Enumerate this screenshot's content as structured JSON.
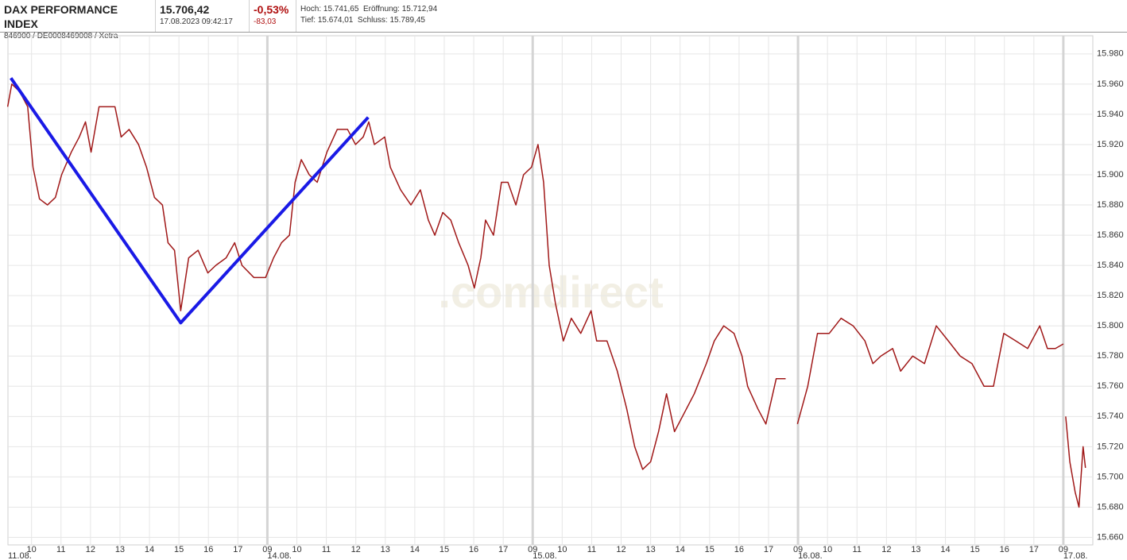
{
  "header": {
    "name": "DAX PERFORMANCE INDEX",
    "identifiers": "846900 / DE0008469008 / Xetra",
    "last_price": "15.706,42",
    "timestamp": "17.08.2023 09:42:17",
    "change_percent": "-0,53%",
    "change_abs": "-83,03",
    "high": "Hoch: 15.741,65",
    "open": "Eröffnung: 15.712,94",
    "low": "Tief: 15.674,01",
    "close": "Schluss: 15.789,45"
  },
  "chart_data": {
    "type": "line",
    "watermark": ".comdirect",
    "xlim": [
      0.2,
      37
    ],
    "ylim": [
      15655,
      15992
    ],
    "grid": true,
    "yticks": [
      {
        "value": 15660,
        "label": "15.660"
      },
      {
        "value": 15680,
        "label": "15.680"
      },
      {
        "value": 15700,
        "label": "15.700"
      },
      {
        "value": 15720,
        "label": "15.720"
      },
      {
        "value": 15740,
        "label": "15.740"
      },
      {
        "value": 15760,
        "label": "15.760"
      },
      {
        "value": 15780,
        "label": "15.780"
      },
      {
        "value": 15800,
        "label": "15.800"
      },
      {
        "value": 15820,
        "label": "15.820"
      },
      {
        "value": 15840,
        "label": "15.840"
      },
      {
        "value": 15860,
        "label": "15.860"
      },
      {
        "value": 15880,
        "label": "15.880"
      },
      {
        "value": 15900,
        "label": "15.900"
      },
      {
        "value": 15920,
        "label": "15.920"
      },
      {
        "value": 15940,
        "label": "15.940"
      },
      {
        "value": 15960,
        "label": "15.960"
      },
      {
        "value": 15980,
        "label": "15.980"
      }
    ],
    "xticks": [
      {
        "value": 1,
        "label": "10"
      },
      {
        "value": 2,
        "label": "11"
      },
      {
        "value": 3,
        "label": "12"
      },
      {
        "value": 4,
        "label": "13"
      },
      {
        "value": 5,
        "label": "14"
      },
      {
        "value": 6,
        "label": "15"
      },
      {
        "value": 7,
        "label": "16"
      },
      {
        "value": 8,
        "label": "17"
      },
      {
        "value": 9,
        "label": "09"
      },
      {
        "value": 10,
        "label": "10"
      },
      {
        "value": 11,
        "label": "11"
      },
      {
        "value": 12,
        "label": "12"
      },
      {
        "value": 13,
        "label": "13"
      },
      {
        "value": 14,
        "label": "14"
      },
      {
        "value": 15,
        "label": "15"
      },
      {
        "value": 16,
        "label": "16"
      },
      {
        "value": 17,
        "label": "17"
      },
      {
        "value": 18,
        "label": "09"
      },
      {
        "value": 19,
        "label": "10"
      },
      {
        "value": 20,
        "label": "11"
      },
      {
        "value": 21,
        "label": "12"
      },
      {
        "value": 22,
        "label": "13"
      },
      {
        "value": 23,
        "label": "14"
      },
      {
        "value": 24,
        "label": "15"
      },
      {
        "value": 25,
        "label": "16"
      },
      {
        "value": 26,
        "label": "17"
      },
      {
        "value": 27,
        "label": "09"
      },
      {
        "value": 28,
        "label": "10"
      },
      {
        "value": 29,
        "label": "11"
      },
      {
        "value": 30,
        "label": "12"
      },
      {
        "value": 31,
        "label": "13"
      },
      {
        "value": 32,
        "label": "14"
      },
      {
        "value": 33,
        "label": "15"
      },
      {
        "value": 34,
        "label": "16"
      },
      {
        "value": 35,
        "label": "17"
      },
      {
        "value": 36,
        "label": "09"
      }
    ],
    "date_ticks": [
      {
        "value": 0.2,
        "label": "11.08."
      },
      {
        "value": 9,
        "label": "14.08."
      },
      {
        "value": 18,
        "label": "15.08."
      },
      {
        "value": 27,
        "label": "16.08."
      },
      {
        "value": 36,
        "label": "17.08."
      }
    ],
    "series": [
      {
        "name": "DAX",
        "color": "#a01818",
        "x": [
          0.19,
          0.33,
          0.6,
          0.87,
          1.05,
          1.27,
          1.54,
          1.81,
          2.02,
          2.35,
          2.62,
          2.83,
          3.02,
          3.29,
          3.56,
          3.83,
          4.04,
          4.31,
          4.63,
          4.9,
          5.17,
          5.44,
          5.63,
          5.85,
          6.06,
          6.33,
          6.65,
          6.98,
          7.25,
          7.6,
          7.89,
          8.14,
          8.54,
          8.94,
          9.21,
          9.48,
          9.75,
          9.94,
          10.15,
          10.42,
          10.69,
          11.02,
          11.37,
          11.72,
          11.99,
          12.25,
          12.44,
          12.63,
          12.98,
          13.17,
          13.52,
          13.87,
          14.19,
          14.46,
          14.68,
          14.95,
          15.22,
          15.49,
          15.81,
          16.02,
          16.24,
          16.4,
          16.67,
          16.94,
          17.16,
          17.43,
          17.69,
          17.96,
          18.18,
          18.37,
          18.56,
          18.77,
          19.04,
          19.31,
          19.63,
          19.98,
          20.17,
          20.52,
          20.87,
          21.19,
          21.46,
          21.73,
          22,
          22.27,
          22.54,
          22.81,
          23.08,
          23.48,
          23.89,
          24.16,
          24.48,
          24.83,
          25.1,
          25.29,
          25.64,
          25.91,
          26.26,
          26.58,
          26.8,
          26.98,
          27.33,
          27.66,
          28.06,
          28.46,
          28.87,
          29.27,
          29.54,
          29.81,
          30.21,
          30.48,
          30.89,
          31.29,
          31.69,
          32.1,
          32.5,
          32.9,
          33.31,
          33.63,
          33.98,
          34.39,
          34.79,
          35.2,
          35.46,
          35.73,
          36,
          36.04,
          36.08,
          36.22,
          36.4,
          36.53,
          36.67,
          36.75
        ],
        "values": [
          15945,
          15960,
          15955,
          15945,
          15905,
          15884,
          15880,
          15885,
          15900,
          15915,
          15925,
          15935,
          15915,
          15945,
          15945,
          15945,
          15925,
          15930,
          15920,
          15905,
          15885,
          15880,
          15855,
          15850,
          15810,
          15845,
          15850,
          15835,
          15840,
          15845,
          15855,
          15840,
          15832,
          15832,
          15845,
          15855,
          15860,
          15895,
          15910,
          15900,
          15895,
          15915,
          15930,
          15930,
          15920,
          15925,
          15935,
          15920,
          15925,
          15905,
          15890,
          15880,
          15890,
          15870,
          15860,
          15875,
          15870,
          15855,
          15840,
          15825,
          15845,
          15870,
          15860,
          15895,
          15895,
          15880,
          15900,
          15905,
          15920,
          15895,
          15840,
          15815,
          15790,
          15805,
          15795,
          15810,
          15790,
          15790,
          15770,
          15745,
          15720,
          15705,
          15710,
          15730,
          15755,
          15730,
          15740,
          15755,
          15775,
          15790,
          15800,
          15795,
          15780,
          15760,
          15745,
          15735,
          15765,
          15765,
          null,
          15735,
          15760,
          15795,
          15795,
          15805,
          15800,
          15790,
          15775,
          15780,
          15785,
          15770,
          15780,
          15775,
          15800,
          15790,
          15780,
          15775,
          15760,
          15760,
          15795,
          15790,
          15785,
          15800,
          15785,
          15785,
          15788,
          null,
          15740,
          15710,
          15690,
          15680,
          15720,
          15706
        ]
      }
    ],
    "annotation_line": {
      "color": "#1a1ae6",
      "x": [
        0.3,
        6.06,
        12.42
      ],
      "values": [
        15964,
        15802,
        15938
      ]
    }
  }
}
